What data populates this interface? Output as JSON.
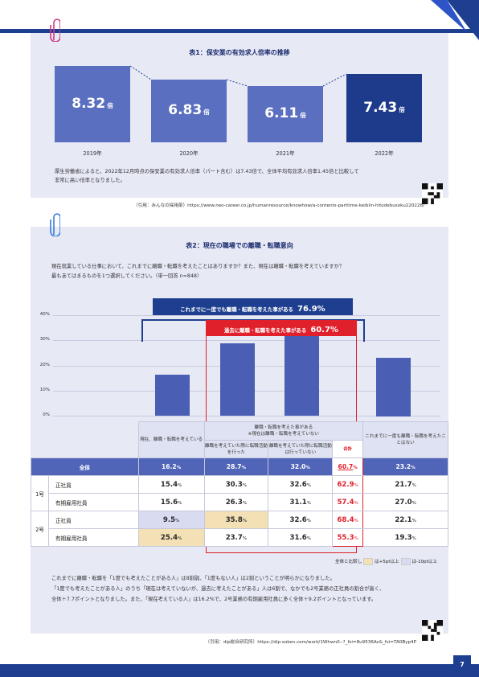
{
  "page_number": "7",
  "chart1": {
    "title": "表1：保安業の有効求人倍率の推移",
    "unit": "倍",
    "note_line1": "厚生労働省によると、2022年12月時点の保安業の有効求人倍率（パート含む）は7.43倍で、全体平均有効求人倍率1.45倍と比較して",
    "note_line2": "非常に高い倍率となりました。",
    "citation": "（引用：みんなの採用部）https://www.neo-career.co.jp/humanresource/knowhow/a-contents-parttime-keibiin-hitodebusoku220228/"
  },
  "chart2": {
    "title": "表2：現在の職場での離職・転職意向",
    "question_line1": "現在就業している仕事において、これまでに離職・転職を考えたことはありますか？また、現在は離職・転職を考えていますか？",
    "question_line2": "最もあてはまるものを1つ選択してください。（単一回答 n=848）",
    "callout_outer_text": "これまでに一度でも離職・転職を考えた事がある",
    "callout_outer_value": "76.9%",
    "callout_inner_text": "過去に離職・転職を考えた事がある",
    "callout_inner_value": "60.7%",
    "header_col1": "現在、離職・転職を考えている",
    "header_group_line1": "離職・転職を考えた事がある",
    "header_group_line2": "※現在は離職・転職を考えていない",
    "header_col2": "離職を考えていた際に転職活動を行った",
    "header_col3": "離職を考えていた際に転職活動は行っていない",
    "header_total": "合計",
    "header_col5": "これまでに一度も離職・転職を考えたことはない",
    "rows": [
      {
        "group": "",
        "label": "全体",
        "v": [
          "16.2",
          "28.7",
          "32.0",
          "60.7",
          "23.2"
        ]
      },
      {
        "group": "1号",
        "label": "正社員",
        "v": [
          "15.4",
          "30.3",
          "32.6",
          "62.9",
          "21.7"
        ]
      },
      {
        "group": "",
        "label": "有期雇用社員",
        "v": [
          "15.6",
          "26.3",
          "31.1",
          "57.4",
          "27.0"
        ]
      },
      {
        "group": "2号",
        "label": "正社員",
        "v": [
          "9.5",
          "35.8",
          "32.6",
          "68.4",
          "22.1"
        ]
      },
      {
        "group": "",
        "label": "有期雇用社員",
        "v": [
          "25.4",
          "23.7",
          "31.6",
          "55.3",
          "19.3"
        ]
      }
    ],
    "pct": "%",
    "legend_prefix": "全体と比較し",
    "legend_plus": "は+5pt以上",
    "legend_minus": "は-10pt以上",
    "summary_line1": "これまでに離職・転職を「1度でも考えたことがある人」は8割弱、「1度もない人」は2割ということが明らかになりました。",
    "summary_line2": "「1度でも考えたことがある人」のうち「現在は考えていないが、過去に考えたことがある」人は6割で、なかでも2号業務の正社員の割合が高く、",
    "summary_line3": "全体＋7.7ポイントとなりました。また、「現在考えている人」は16.2%で、2号業務の有期雇用社員に多く全体＋9.2ポイントとなっています。",
    "citation": "（引用：dip総合研究所）https://dip-soken.com/work/1Whwn0--?_fsi=8u9536Av&_fsi=TA0Byp4P"
  },
  "chart_data": [
    {
      "type": "bar",
      "title": "表1：保安業の有効求人倍率の推移",
      "categories": [
        "2019年",
        "2020年",
        "2021年",
        "2022年"
      ],
      "values": [
        8.32,
        6.83,
        6.11,
        7.43
      ],
      "value_labels": [
        "8.32",
        "6.83",
        "6.11",
        "7.43"
      ],
      "unit": "倍",
      "colors": [
        "#5a6fc0",
        "#5a6fc0",
        "#5a6fc0",
        "#1e3a8a"
      ],
      "ylim": [
        0,
        9
      ]
    },
    {
      "type": "bar",
      "title": "表2：現在の職場での離職・転職意向",
      "categories": [
        "現在、離職・転職を考えている",
        "離職を考えていた際に転職活動を行った",
        "離職を考えていた際に転職活動は行っていない",
        "これまでに一度も離職・転職を考えたことはない"
      ],
      "values": [
        16.2,
        28.7,
        32.0,
        23.2
      ],
      "yticks": [
        "0%",
        "10%",
        "20%",
        "30%",
        "40%"
      ],
      "ylim": [
        0,
        40
      ],
      "grid": true,
      "color": "#4a5fb3"
    }
  ],
  "colors": {
    "brand": "#1e3f8f",
    "panel": "#e7e9f5",
    "accent_red": "#e0202b",
    "highlight_blue": "#d9dcf1",
    "highlight_yellow": "#f3e0b4"
  }
}
